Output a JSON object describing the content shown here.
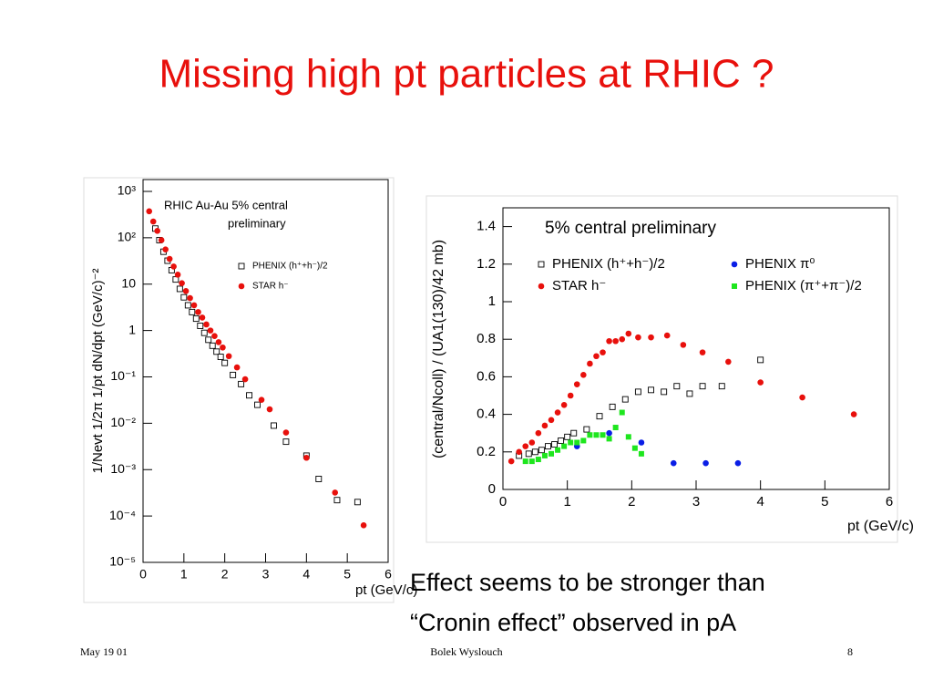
{
  "title": "Missing high pt particles at RHIC ?",
  "body": [
    "Effect seems to be stronger than",
    "“Cronin effect” observed in pA"
  ],
  "footer": {
    "date": "May 19 01",
    "author": "Bolek Wyslouch",
    "page": "8"
  },
  "chart_data": [
    {
      "type": "scatter",
      "log_y": true,
      "annotations": [
        "RHIC Au-Au 5% central",
        "preliminary"
      ],
      "x_label": "pt (GeV/c)",
      "y_label": "1/Nevt 1/2π 1/pt dN/dpt (GeV/c)⁻²",
      "xlim": [
        0,
        6
      ],
      "xticks": [
        0,
        1,
        2,
        3,
        4,
        5,
        6
      ],
      "ylim": [
        1e-05,
        1800
      ],
      "yticks": [
        {
          "value": 1000,
          "label": "10³"
        },
        {
          "value": 100,
          "label": "10²"
        },
        10,
        1,
        {
          "value": 0.1,
          "label": "10⁻¹"
        },
        {
          "value": 0.01,
          "label": "10⁻²"
        },
        {
          "value": 0.001,
          "label": "10⁻³"
        },
        {
          "value": 0.0001,
          "label": "10⁻⁴"
        },
        {
          "value": 1e-05,
          "label": "10⁻⁵"
        }
      ],
      "series": [
        {
          "name": "PHENIX (h⁺+h⁻)/2",
          "color": "#000000",
          "marker": "square-open",
          "x": [
            0.3,
            0.4,
            0.5,
            0.6,
            0.7,
            0.8,
            0.9,
            1.0,
            1.1,
            1.2,
            1.3,
            1.4,
            1.5,
            1.6,
            1.7,
            1.8,
            1.9,
            2.0,
            2.2,
            2.4,
            2.6,
            2.8,
            3.2,
            3.5,
            4.0,
            4.3,
            4.75,
            5.25
          ],
          "values": [
            158,
            89,
            50,
            32,
            20,
            12.6,
            7.9,
            5.2,
            3.5,
            2.5,
            1.8,
            1.26,
            0.89,
            0.63,
            0.47,
            0.35,
            0.27,
            0.2,
            0.11,
            0.07,
            0.04,
            0.025,
            0.0089,
            0.004,
            0.002,
            0.00063,
            0.00022,
            0.0002
          ]
        },
        {
          "name": "STAR h⁻",
          "color": "#e8100c",
          "marker": "circle",
          "x": [
            0.15,
            0.25,
            0.35,
            0.45,
            0.55,
            0.65,
            0.75,
            0.85,
            0.95,
            1.05,
            1.15,
            1.25,
            1.35,
            1.45,
            1.55,
            1.65,
            1.75,
            1.85,
            1.95,
            2.1,
            2.3,
            2.5,
            2.9,
            3.1,
            3.5,
            4.0,
            4.7,
            5.4
          ],
          "values": [
            372,
            224,
            141,
            89,
            56,
            35,
            24,
            16,
            10.5,
            7.1,
            5.0,
            3.5,
            2.5,
            1.9,
            1.35,
            1.0,
            0.76,
            0.56,
            0.43,
            0.28,
            0.16,
            0.089,
            0.032,
            0.02,
            0.0063,
            0.0018,
            0.00032,
            6.3e-05
          ]
        }
      ]
    },
    {
      "type": "scatter",
      "log_y": false,
      "annotations": [
        "5% central   preliminary"
      ],
      "x_label": "pt (GeV/c)",
      "y_label": "(central/Ncoll) / (UA1(130)/42 mb)",
      "xlim": [
        0,
        6
      ],
      "xticks": [
        0,
        1,
        2,
        3,
        4,
        5,
        6
      ],
      "ylim": [
        0,
        1.5
      ],
      "yticks": [
        0,
        0.2,
        0.4,
        0.6,
        0.8,
        1,
        1.2,
        1.4
      ],
      "series": [
        {
          "name": "PHENIX (h⁺+h⁻)/2",
          "color": "#000000",
          "marker": "square-open",
          "x": [
            0.25,
            0.4,
            0.5,
            0.6,
            0.7,
            0.8,
            0.9,
            1.0,
            1.1,
            1.3,
            1.5,
            1.7,
            1.9,
            2.1,
            2.3,
            2.5,
            2.7,
            2.9,
            3.1,
            3.4,
            4.0
          ],
          "values": [
            0.18,
            0.19,
            0.2,
            0.21,
            0.23,
            0.24,
            0.26,
            0.28,
            0.3,
            0.32,
            0.39,
            0.44,
            0.48,
            0.52,
            0.53,
            0.52,
            0.55,
            0.51,
            0.55,
            0.55,
            0.69
          ]
        },
        {
          "name": "PHENIX π⁰",
          "color": "#0a1ee6",
          "marker": "circle",
          "x": [
            1.15,
            1.65,
            2.15,
            2.65,
            3.15,
            3.65
          ],
          "values": [
            0.23,
            0.3,
            0.25,
            0.14,
            0.14,
            0.14
          ]
        },
        {
          "name": "STAR h⁻",
          "color": "#e8100c",
          "marker": "circle",
          "x": [
            0.13,
            0.25,
            0.35,
            0.45,
            0.55,
            0.65,
            0.75,
            0.85,
            0.95,
            1.05,
            1.15,
            1.25,
            1.35,
            1.45,
            1.55,
            1.65,
            1.75,
            1.85,
            1.95,
            2.1,
            2.3,
            2.55,
            2.8,
            3.1,
            3.5,
            4.0,
            4.65,
            5.45
          ],
          "values": [
            0.15,
            0.2,
            0.23,
            0.25,
            0.3,
            0.34,
            0.37,
            0.41,
            0.45,
            0.5,
            0.56,
            0.61,
            0.67,
            0.71,
            0.73,
            0.79,
            0.79,
            0.8,
            0.83,
            0.81,
            0.81,
            0.82,
            0.77,
            0.73,
            0.68,
            0.57,
            0.49,
            0.4
          ]
        },
        {
          "name": "PHENIX (π⁺+π⁻)/2",
          "color": "#1ee61e",
          "marker": "square",
          "x": [
            0.35,
            0.45,
            0.55,
            0.65,
            0.75,
            0.85,
            0.95,
            1.05,
            1.15,
            1.25,
            1.35,
            1.45,
            1.55,
            1.65,
            1.75,
            1.85,
            1.95,
            2.05,
            2.15
          ],
          "values": [
            0.15,
            0.15,
            0.16,
            0.18,
            0.19,
            0.21,
            0.23,
            0.25,
            0.25,
            0.26,
            0.29,
            0.29,
            0.29,
            0.27,
            0.33,
            0.41,
            0.28,
            0.22,
            0.19
          ]
        }
      ]
    }
  ]
}
